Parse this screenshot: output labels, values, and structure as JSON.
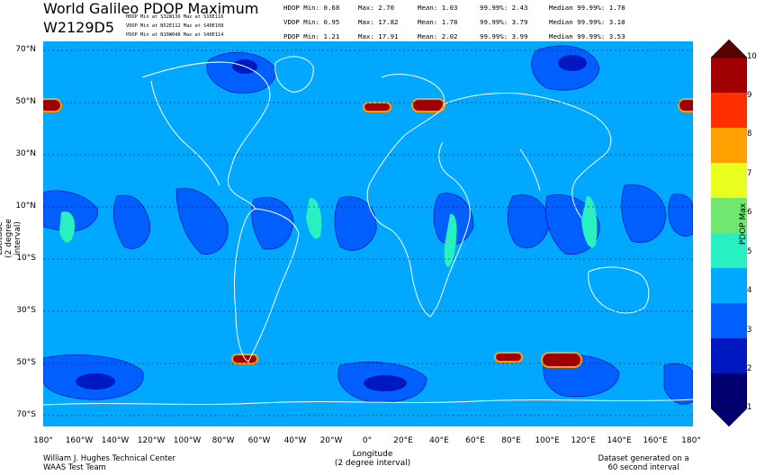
{
  "header": {
    "title": "World Galileo PDOP Maximum",
    "subtitle": "W2129D5",
    "min_lines": [
      "HDOP Min at S32W136    Max at S16E116",
      "VDOP Min at N52E112    Max at S40E108",
      "PDOP Min at N10W048    Max at S40E114"
    ],
    "stats": [
      {
        "name": "HDOP Min:  0.68",
        "max": "Max:  2.70",
        "mean": "Mean:  1.03",
        "p": "99.99%:  2.43",
        "med": "Median 99.99%:  1.78"
      },
      {
        "name": "VDOP Min:  0.95",
        "max": "Max:  17.82",
        "mean": "Mean:  1.78",
        "p": "99.99%:  3.79",
        "med": "Median 99.99%:  3.18"
      },
      {
        "name": "PDOP Min:  1.21",
        "max": "Max:  17.91",
        "mean": "Mean:  2.02",
        "p": "99.99%:  3.99",
        "med": "Median 99.99%:  3.53"
      }
    ]
  },
  "axes": {
    "ylabel": "Latitude\n(2 degree interval)",
    "xlabel": "Longitude\n(2 degree interval)",
    "lat_ticks": [
      "70°N",
      "50°N",
      "30°N",
      "10°N",
      "10°S",
      "30°S",
      "50°S",
      "70°S"
    ],
    "lon_ticks": [
      "180°",
      "160°W",
      "140°W",
      "120°W",
      "100°W",
      "80°W",
      "60°W",
      "40°W",
      "20°W",
      "0°",
      "20°E",
      "40°E",
      "60°E",
      "80°E",
      "100°E",
      "120°E",
      "140°E",
      "160°E",
      "180°"
    ]
  },
  "colorbar": {
    "title": "PDOP Max",
    "ticks": [
      "10",
      "9",
      "8",
      "7",
      "6",
      "5",
      "4",
      "3",
      "2",
      "1"
    ],
    "colors": [
      "#a00000",
      "#ff3000",
      "#ffa000",
      "#e8ff20",
      "#70e870",
      "#28f0c0",
      "#00a8ff",
      "#0060ff",
      "#0018c0",
      "#000070"
    ]
  },
  "footer": {
    "left_line1": "William J. Hughes Technical Center",
    "left_line2": "WAAS Test Team",
    "right_line1": "Dataset generated on a",
    "right_line2": "60 second interval"
  },
  "colors": {
    "background_field": "#00a8ff",
    "low_region": "#0060ff",
    "lower_region": "#0018c0",
    "high_region": "#28f0c0",
    "max_spot": "#a00000",
    "coastline": "#ffffff"
  },
  "map_regions": [
    {
      "name": "north-pacific-high",
      "level": "2"
    },
    {
      "name": "north-atlantic-spot",
      "level": "10"
    },
    {
      "name": "equatorial-band",
      "level": "2-5"
    },
    {
      "name": "south-ocean-spots",
      "level": "10"
    }
  ]
}
